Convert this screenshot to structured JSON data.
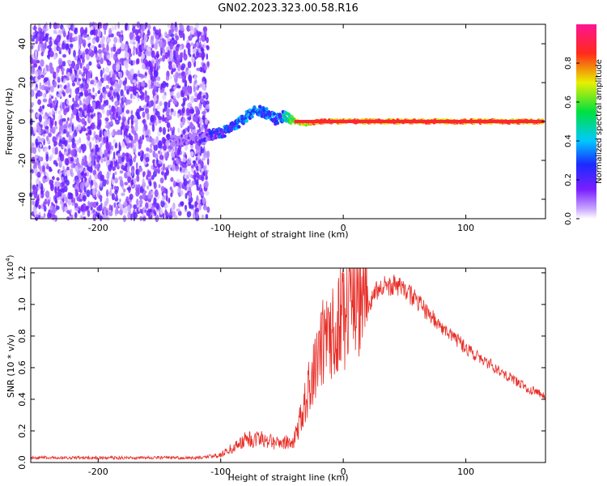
{
  "title": "GN02.2023.323.00.58.R16",
  "colors": {
    "snr_line": "#e8302a",
    "background": "#ffffff"
  },
  "chart_data": [
    {
      "type": "heatmap",
      "xlabel": "Height of straight line (km)",
      "ylabel": "Frequency (Hz)",
      "xlim": [
        -255,
        165
      ],
      "ylim": [
        -50,
        50
      ],
      "xticks": [
        -200,
        -100,
        0,
        100
      ],
      "yticks": [
        -40,
        -20,
        0,
        20,
        40
      ],
      "grid": false,
      "colorbar": {
        "label": "Normalized spectral amplitude",
        "range": [
          0,
          1
        ],
        "ticks": [
          "0.0",
          "0.2",
          "0.4",
          "0.6",
          "0.8"
        ],
        "colormap": "rainbow (purple → blue → cyan → green → yellow → red → magenta)"
      },
      "signal_track": {
        "x": [
          -140,
          -120,
          -110,
          -100,
          -90,
          -80,
          -70,
          -62,
          -55,
          -48,
          -40,
          -30,
          -20,
          -10,
          0,
          50,
          100,
          165
        ],
        "frequency": [
          -10,
          -9,
          -7,
          -6,
          -3,
          2,
          6,
          4,
          1,
          3,
          0,
          -1,
          0,
          0,
          0,
          0,
          0,
          0
        ],
        "amplitude": [
          0.15,
          0.2,
          0.3,
          0.35,
          0.4,
          0.45,
          0.45,
          0.4,
          0.4,
          0.5,
          0.75,
          0.85,
          0.9,
          0.9,
          0.9,
          0.9,
          0.9,
          0.9
        ]
      },
      "noise_region_x": [
        -255,
        -110
      ]
    },
    {
      "type": "line",
      "xlabel": "Height of straight line (km)",
      "ylabel": "SNR (10 * v/v)",
      "yscale_label": "(x10",
      "yscale_exp": "4",
      "y_multiplier": 10000,
      "xlim": [
        -255,
        165
      ],
      "ylim": [
        0,
        1.23
      ],
      "xticks": [
        -200,
        -100,
        0,
        100
      ],
      "yticks": [
        "0.0",
        "0.2",
        "0.4",
        "0.6",
        "0.8",
        "1.0",
        "1.2"
      ],
      "grid": false,
      "series": [
        {
          "x": [
            -255,
            -200,
            -150,
            -120,
            -100,
            -90,
            -80,
            -70,
            -60,
            -50,
            -40,
            -30,
            -20,
            -10,
            0,
            10,
            20,
            30,
            40,
            50,
            60,
            70,
            80,
            90,
            100,
            110,
            120,
            130,
            140,
            150,
            165
          ],
          "y": [
            0.03,
            0.03,
            0.03,
            0.03,
            0.04,
            0.08,
            0.12,
            0.13,
            0.12,
            0.1,
            0.12,
            0.35,
            0.6,
            0.72,
            0.78,
            0.88,
            1.0,
            1.12,
            1.12,
            1.1,
            1.02,
            0.94,
            0.85,
            0.8,
            0.72,
            0.67,
            0.62,
            0.57,
            0.52,
            0.47,
            0.42
          ]
        }
      ]
    }
  ]
}
